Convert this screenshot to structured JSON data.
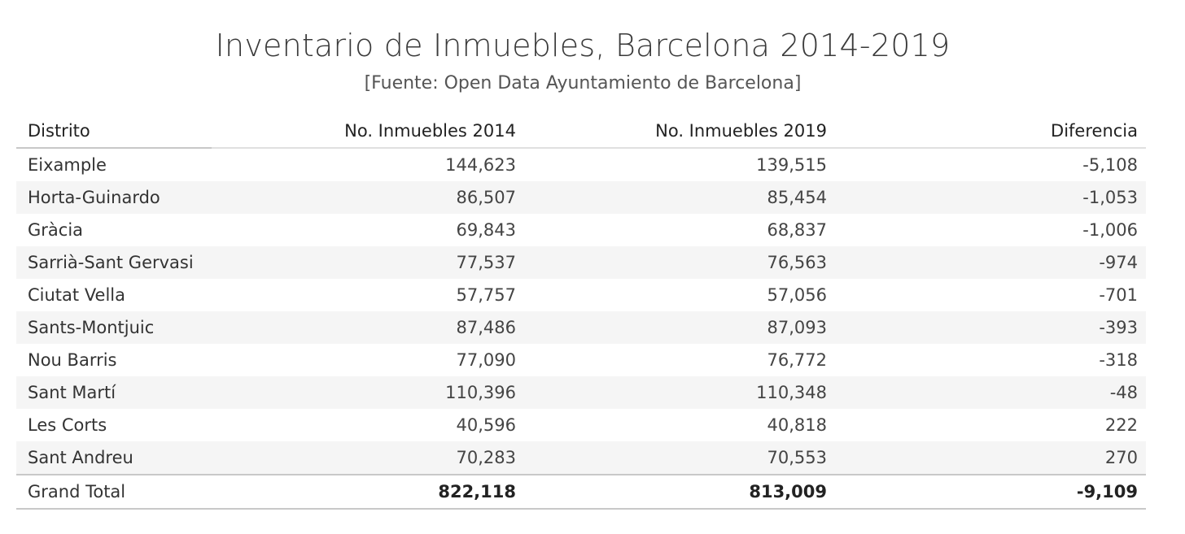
{
  "title": "Inventario de Inmuebles, Barcelona 2014-2019",
  "subtitle": "[Fuente: Open Data Ayuntamiento de Barcelona]",
  "chart_data": {
    "type": "table",
    "title": "Inventario de Inmuebles, Barcelona 2014-2019",
    "subtitle": "[Fuente: Open Data Ayuntamiento de Barcelona]",
    "columns": [
      "Distrito",
      "No. Inmuebles 2014",
      "No. Inmuebles 2019",
      "Diferencia"
    ],
    "rows": [
      [
        "Eixample",
        "144,623",
        "139,515",
        "-5,108"
      ],
      [
        "Horta-Guinardo",
        "86,507",
        "85,454",
        "-1,053"
      ],
      [
        "Gràcia",
        "69,843",
        "68,837",
        "-1,006"
      ],
      [
        "Sarrià-Sant Gervasi",
        "77,537",
        "76,563",
        "-974"
      ],
      [
        "Ciutat Vella",
        "57,757",
        "57,056",
        "-701"
      ],
      [
        "Sants-Montjuic",
        "87,486",
        "87,093",
        "-393"
      ],
      [
        "Nou Barris",
        "77,090",
        "76,772",
        "-318"
      ],
      [
        "Sant Martí",
        "110,396",
        "110,348",
        "-48"
      ],
      [
        "Les Corts",
        "40,596",
        "40,818",
        "222"
      ],
      [
        "Sant Andreu",
        "70,283",
        "70,553",
        "270"
      ]
    ],
    "total": [
      "Grand Total",
      "822,118",
      "813,009",
      "-9,109"
    ]
  }
}
